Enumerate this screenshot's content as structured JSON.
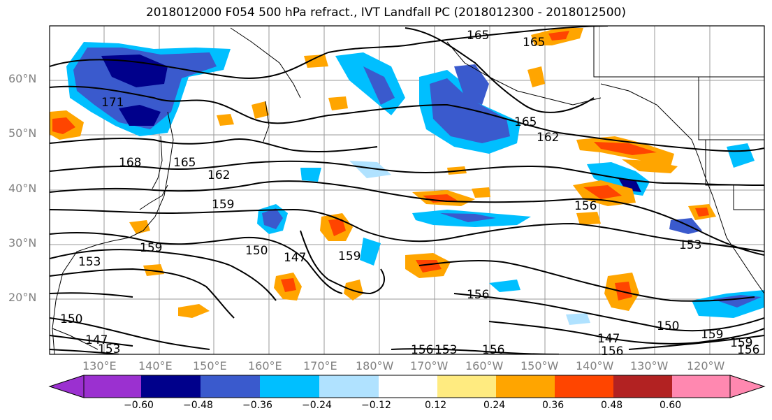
{
  "title": "2018012000 F054 500 hPa refract., IVT Landfall PC (2018012300 - 2018012500)",
  "lat_labels": [
    "60°N",
    "50°N",
    "40°N",
    "30°N",
    "20°N"
  ],
  "lon_labels": [
    "130°E",
    "140°E",
    "150°E",
    "160°E",
    "170°E",
    "180°W",
    "170°W",
    "160°W",
    "150°W",
    "140°W",
    "130°W",
    "120°W"
  ],
  "contour_labels": [
    "165",
    "165",
    "165",
    "162",
    "171",
    "168",
    "165",
    "162",
    "159",
    "156",
    "153",
    "159",
    "150",
    "147",
    "159",
    "156",
    "153",
    "150",
    "147",
    "159",
    "159",
    "156",
    "156",
    "153",
    "156",
    "153",
    "150",
    "147",
    "156"
  ],
  "colorbar": {
    "ticks": [
      "−0.60",
      "−0.48",
      "−0.36",
      "−0.24",
      "−0.12",
      "0.12",
      "0.24",
      "0.36",
      "0.48",
      "0.60"
    ],
    "colors": [
      "#9b30d0",
      "#00008b",
      "#3a5acd",
      "#00bfff",
      "#b0e2ff",
      "#ffffff",
      "#ffeb80",
      "#ffa500",
      "#ff4500",
      "#b22222",
      "#ff88b0"
    ]
  }
}
